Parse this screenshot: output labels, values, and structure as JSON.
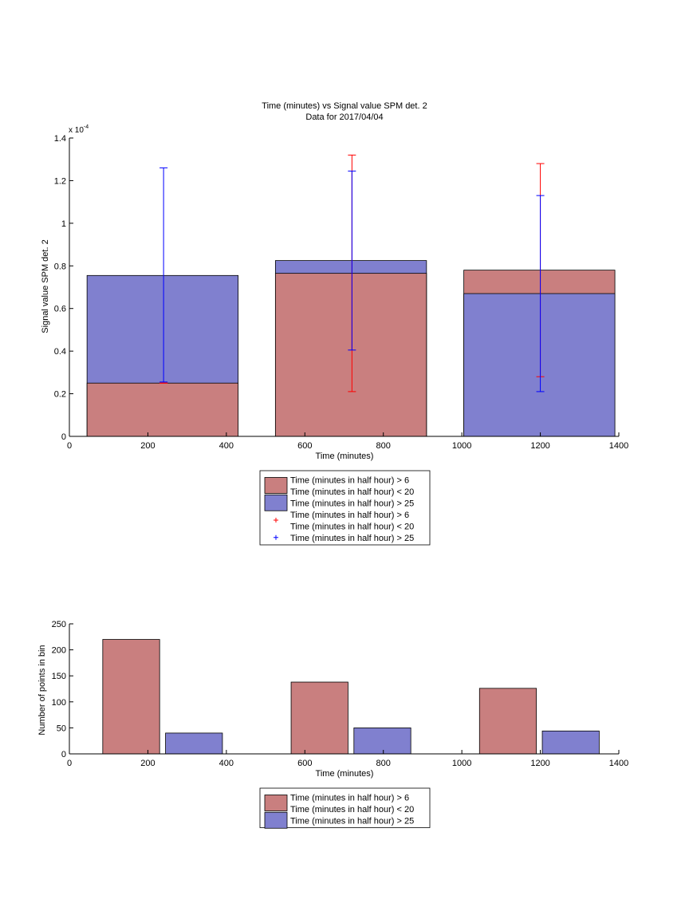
{
  "colors": {
    "red_fill": "#c97f7f",
    "blue_fill": "#8080cf",
    "red_err": "#ff0000",
    "blue_err": "#0000ff"
  },
  "chart_data": [
    {
      "type": "bar",
      "title": "Time (minutes) vs Signal value SPM det. 2",
      "subtitle": "Data for 2017/04/04",
      "xlabel": "Time (minutes)",
      "ylabel": "Signal value SPM det. 2",
      "y_exponent_label": "x 10",
      "y_exponent_power": "-4",
      "xlim": [
        0,
        1400
      ],
      "ylim": [
        0,
        1.4
      ],
      "xticks": [
        0,
        200,
        400,
        600,
        800,
        1000,
        1200,
        1400
      ],
      "yticks": [
        0,
        0.2,
        0.4,
        0.6,
        0.8,
        1,
        1.2,
        1.4
      ],
      "ytick_labels": [
        "0",
        "0.2",
        "0.4",
        "0.6",
        "0.8",
        "1",
        "1.2",
        "1.4"
      ],
      "stacked_overlay": true,
      "bars": [
        {
          "x_start": 45,
          "x_end": 430,
          "center": 240,
          "red": 0.25,
          "blue": 0.755
        },
        {
          "x_start": 525,
          "x_end": 910,
          "center": 720,
          "red": 0.765,
          "blue": 0.825
        },
        {
          "x_start": 1005,
          "x_end": 1390,
          "center": 1200,
          "red": 0.78,
          "blue": 0.67
        }
      ],
      "errorbars": [
        {
          "series": "red",
          "x": 240,
          "low": 0.25,
          "high": 0.25
        },
        {
          "series": "blue",
          "x": 240,
          "low": 0.255,
          "high": 1.26
        },
        {
          "series": "red",
          "x": 720,
          "low": 0.21,
          "high": 1.32
        },
        {
          "series": "blue",
          "x": 720,
          "low": 0.405,
          "high": 1.245
        },
        {
          "series": "red",
          "x": 1200,
          "low": 0.28,
          "high": 1.28
        },
        {
          "series": "blue",
          "x": 1200,
          "low": 0.21,
          "high": 1.13
        }
      ],
      "legend": {
        "placement": "below",
        "entries": [
          {
            "kind": "patch",
            "color": "red",
            "lines": [
              "Time (minutes in half hour) > 6",
              "Time (minutes in half hour) < 20"
            ]
          },
          {
            "kind": "patch",
            "color": "blue",
            "lines": [
              "Time (minutes in half hour) > 25"
            ]
          },
          {
            "kind": "marker",
            "color": "red",
            "lines": [
              "Time (minutes in half hour) > 6",
              "Time (minutes in half hour) < 20"
            ]
          },
          {
            "kind": "marker",
            "color": "blue",
            "lines": [
              "Time (minutes in half hour) > 25"
            ]
          }
        ]
      }
    },
    {
      "type": "bar",
      "title": "",
      "xlabel": "Time (minutes)",
      "ylabel": "Number of points in bin",
      "xlim": [
        0,
        1400
      ],
      "ylim": [
        0,
        250
      ],
      "xticks": [
        0,
        200,
        400,
        600,
        800,
        1000,
        1200,
        1400
      ],
      "yticks": [
        0,
        50,
        100,
        150,
        200,
        250
      ],
      "ytick_labels": [
        "0",
        "50",
        "100",
        "150",
        "200",
        "250"
      ],
      "bars": [
        {
          "series": "red",
          "x_start": 85,
          "x_end": 230,
          "value": 220
        },
        {
          "series": "blue",
          "x_start": 245,
          "x_end": 390,
          "value": 40
        },
        {
          "series": "red",
          "x_start": 565,
          "x_end": 710,
          "value": 138
        },
        {
          "series": "blue",
          "x_start": 725,
          "x_end": 870,
          "value": 50
        },
        {
          "series": "red",
          "x_start": 1045,
          "x_end": 1190,
          "value": 126
        },
        {
          "series": "blue",
          "x_start": 1205,
          "x_end": 1350,
          "value": 44
        }
      ],
      "legend": {
        "placement": "below",
        "entries": [
          {
            "kind": "patch",
            "color": "red",
            "lines": [
              "Time (minutes in half hour) > 6",
              "Time (minutes in half hour) < 20"
            ]
          },
          {
            "kind": "patch",
            "color": "blue",
            "lines": [
              "Time (minutes in half hour) > 25"
            ]
          }
        ]
      }
    }
  ]
}
